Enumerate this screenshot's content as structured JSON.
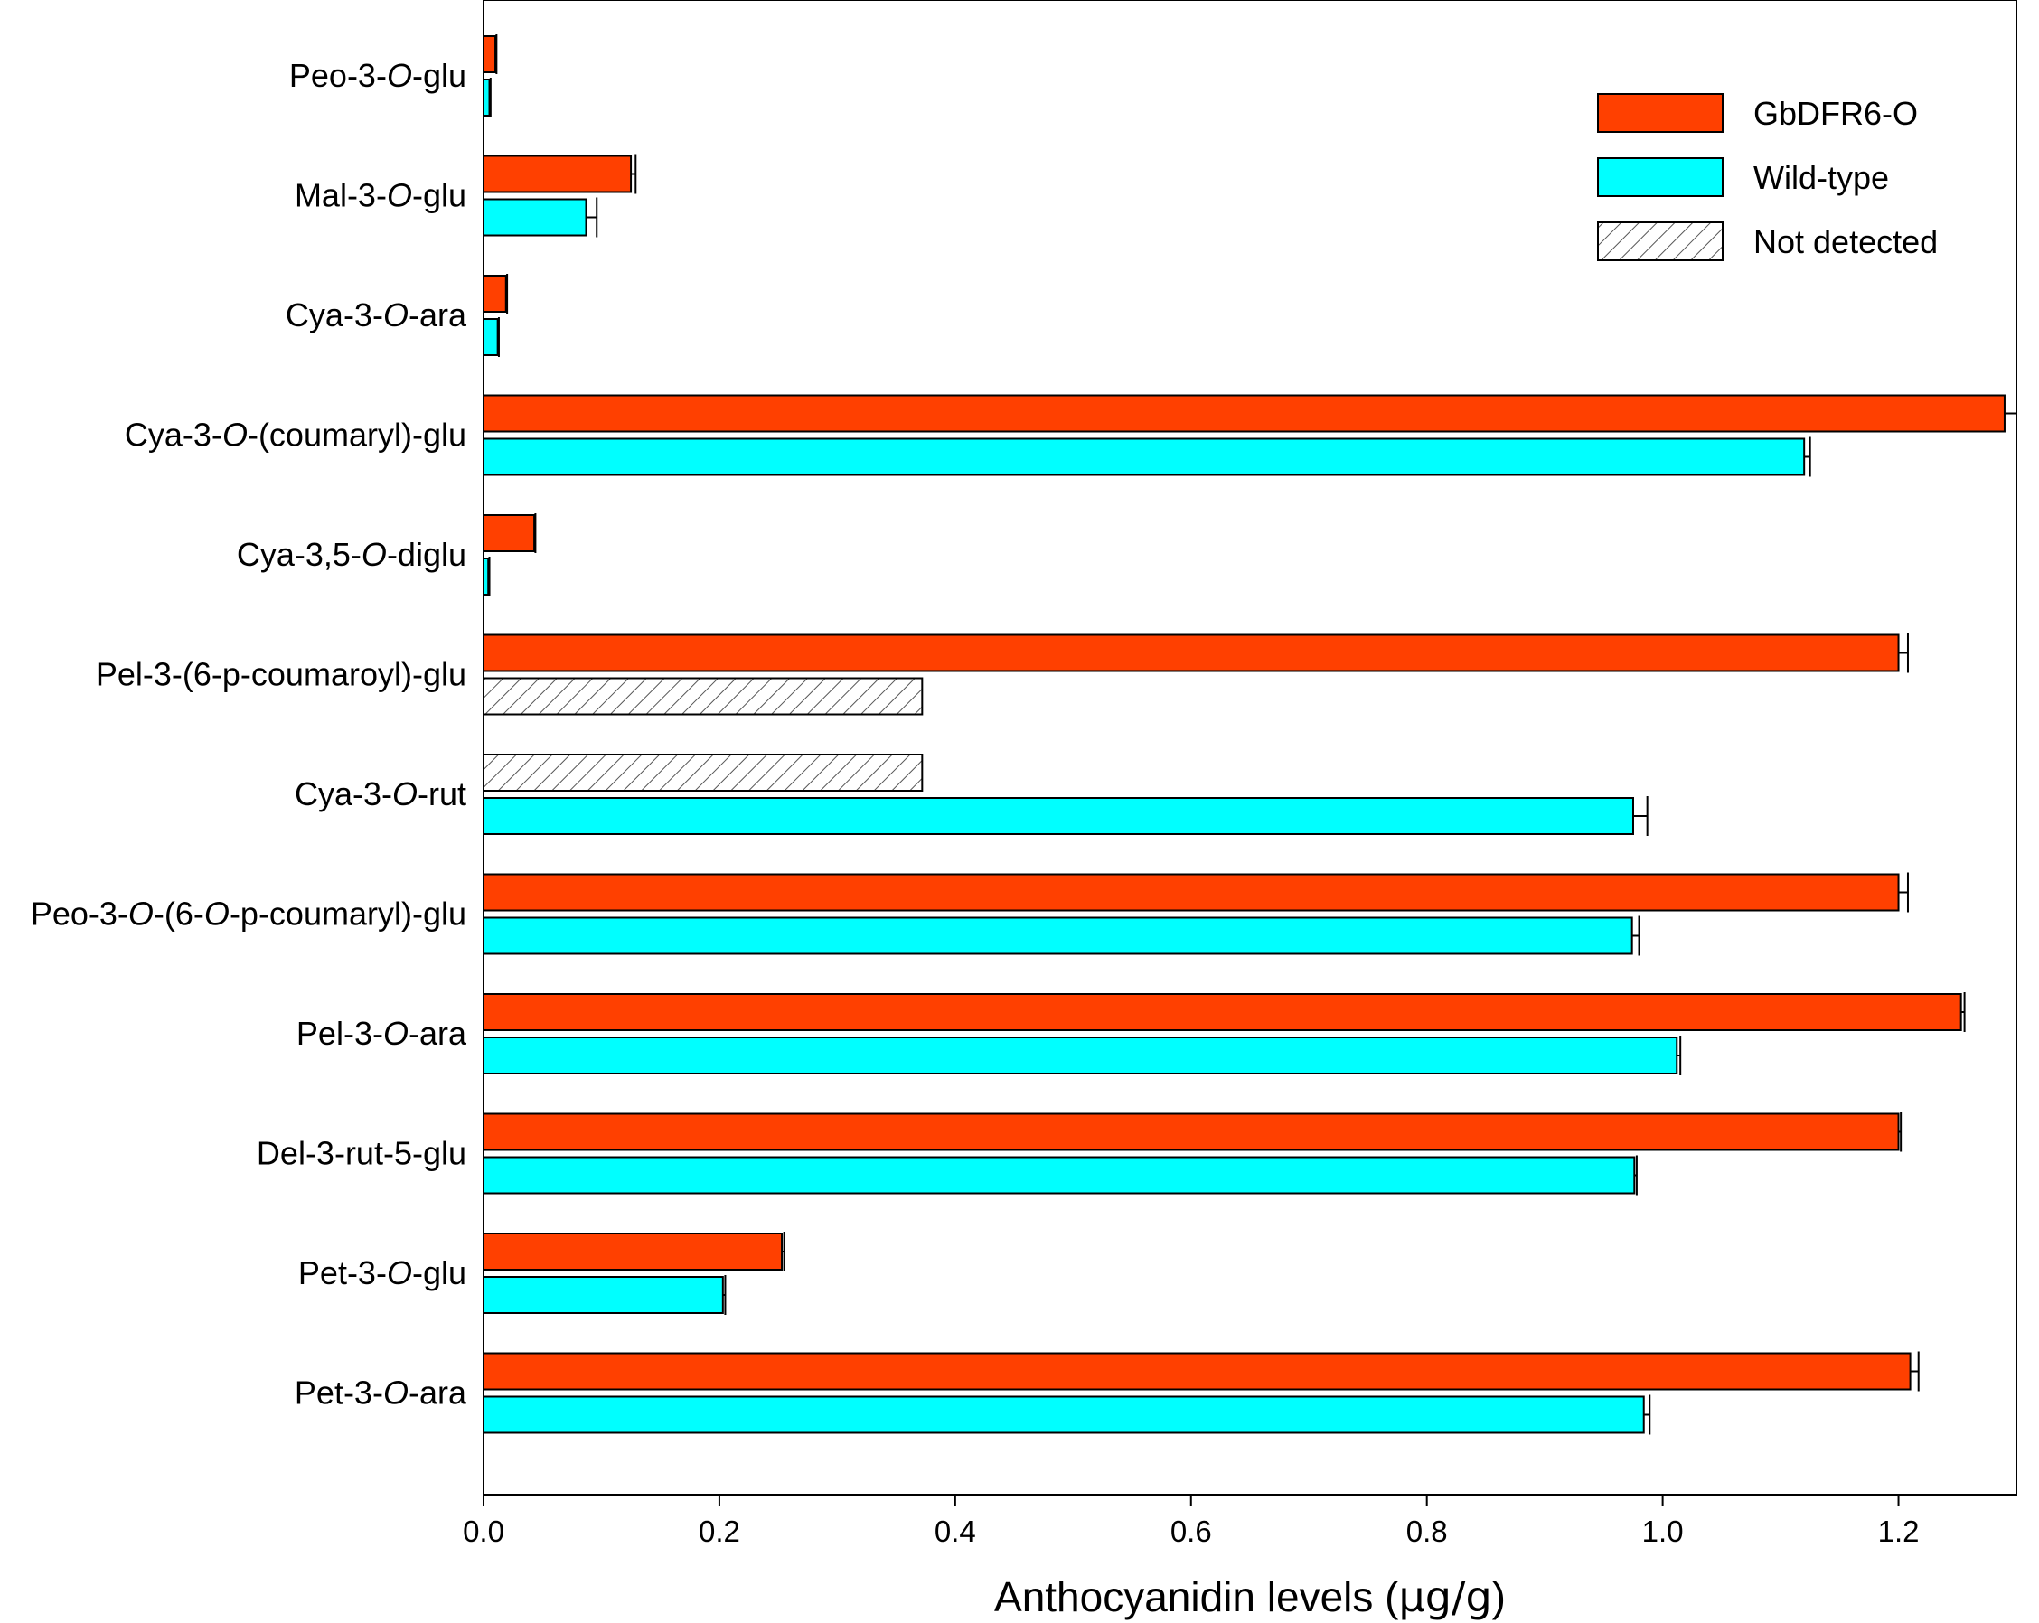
{
  "chart_data": {
    "type": "bar",
    "orientation": "horizontal",
    "categories": [
      {
        "parts": [
          {
            "t": "Peo-3-"
          },
          {
            "t": "O",
            "i": true
          },
          {
            "t": "-glu"
          }
        ]
      },
      {
        "parts": [
          {
            "t": "Mal-3-"
          },
          {
            "t": "O",
            "i": true
          },
          {
            "t": "-glu"
          }
        ]
      },
      {
        "parts": [
          {
            "t": "Cya-3-"
          },
          {
            "t": "O",
            "i": true
          },
          {
            "t": "-ara"
          }
        ]
      },
      {
        "parts": [
          {
            "t": "Cya-3-"
          },
          {
            "t": "O",
            "i": true
          },
          {
            "t": "-(coumaryl)-glu"
          }
        ]
      },
      {
        "parts": [
          {
            "t": "Cya-3,5-"
          },
          {
            "t": "O",
            "i": true
          },
          {
            "t": "-diglu"
          }
        ]
      },
      {
        "parts": [
          {
            "t": "Pel-3-(6-p-coumaroyl)-glu"
          }
        ]
      },
      {
        "parts": [
          {
            "t": "Cya-3-"
          },
          {
            "t": "O",
            "i": true
          },
          {
            "t": "-rut"
          }
        ]
      },
      {
        "parts": [
          {
            "t": "Peo-3-"
          },
          {
            "t": "O",
            "i": true
          },
          {
            "t": "-(6-"
          },
          {
            "t": "O",
            "i": true
          },
          {
            "t": "-p-coumaryl)-glu"
          }
        ]
      },
      {
        "parts": [
          {
            "t": "Pel-3-"
          },
          {
            "t": "O",
            "i": true
          },
          {
            "t": "-ara"
          }
        ]
      },
      {
        "parts": [
          {
            "t": "Del-3-rut-5-glu"
          }
        ]
      },
      {
        "parts": [
          {
            "t": "Pet-3-"
          },
          {
            "t": "O",
            "i": true
          },
          {
            "t": "-glu"
          }
        ]
      },
      {
        "parts": [
          {
            "t": "Pet-3-"
          },
          {
            "t": "O",
            "i": true
          },
          {
            "t": "-ara"
          }
        ]
      }
    ],
    "series": [
      {
        "name": "GbDFR6-O",
        "color": "#FF4000",
        "values": [
          0.01,
          0.125,
          0.019,
          1.29,
          0.043,
          1.2,
          null,
          1.2,
          1.253,
          1.2,
          0.253,
          1.21
        ],
        "errors": [
          0.001,
          0.004,
          0.001,
          0.01,
          0.001,
          0.008,
          null,
          0.008,
          0.003,
          0.002,
          0.002,
          0.007
        ],
        "not_detected": [
          false,
          false,
          false,
          false,
          false,
          false,
          true,
          false,
          false,
          false,
          false,
          false
        ]
      },
      {
        "name": "Wild-type",
        "color": "#00FFFF",
        "values": [
          0.005,
          0.087,
          0.012,
          1.12,
          0.004,
          null,
          0.975,
          0.974,
          1.012,
          0.976,
          0.203,
          0.984
        ],
        "errors": [
          0.001,
          0.009,
          0.001,
          0.005,
          0.001,
          null,
          0.012,
          0.006,
          0.003,
          0.002,
          0.002,
          0.005
        ],
        "not_detected": [
          false,
          false,
          false,
          false,
          false,
          true,
          false,
          false,
          false,
          false,
          false,
          false
        ]
      }
    ],
    "not_detected_value": 0.372,
    "legend": [
      {
        "name": "GbDFR6-O",
        "style": "solid",
        "color": "#FF4000"
      },
      {
        "name": "Wild-type",
        "style": "solid",
        "color": "#00FFFF"
      },
      {
        "name": "Not detected",
        "style": "hatched",
        "color": "#ffffff"
      }
    ],
    "legend_position": "top-right",
    "xlabel_parts": [
      {
        "t": "Anthocyanidin levels ("
      },
      {
        "t": "μg/g",
        "sym": true
      },
      {
        "t": ")"
      }
    ],
    "xticks": [
      "0.0",
      "0.2",
      "0.4",
      "0.6",
      "0.8",
      "1.0",
      "1.2"
    ],
    "xlim": [
      0,
      1.3
    ],
    "grid": false
  }
}
